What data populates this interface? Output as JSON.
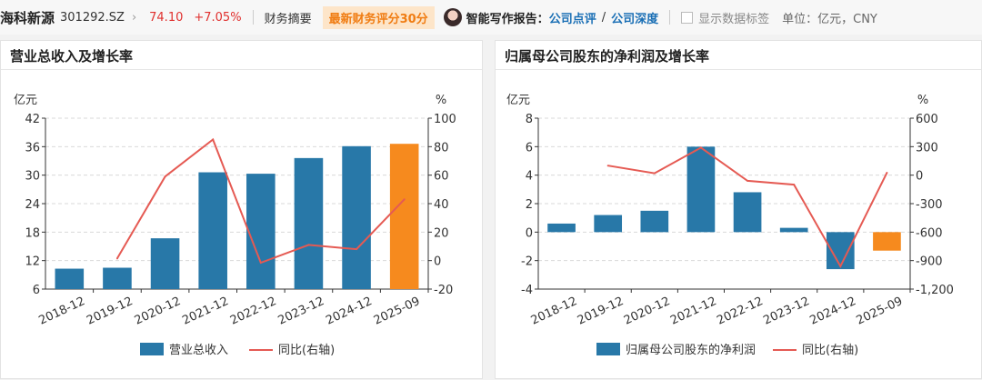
{
  "header": {
    "stock_name": "海科新源",
    "stock_code": "301292.SZ",
    "price": "74.10",
    "change": "+7.05%",
    "tab_finance": "财务摘要",
    "score_badge": "最新财务评分30分",
    "ai_label": "智能写作报告：",
    "link_review": "公司点评",
    "slash": "/",
    "link_depth": "公司深度",
    "show_labels": "显示数据标签",
    "unit": "单位：亿元，CNY"
  },
  "colors": {
    "bar": "#2878a8",
    "bar_highlight": "#f68a1e",
    "line": "#e55a53",
    "accent_red": "#e0302e",
    "link_blue": "#1a6fb5"
  },
  "chart_data": [
    {
      "type": "bar+line",
      "title": "营业总收入及增长率",
      "categories": [
        "2018-12",
        "2019-12",
        "2020-12",
        "2021-12",
        "2022-12",
        "2023-12",
        "2024-12",
        "2025-09"
      ],
      "left_unit": "亿元",
      "right_unit": "%",
      "left_ylim": [
        6,
        42
      ],
      "left_ticks": [
        6,
        12,
        18,
        24,
        30,
        36,
        42
      ],
      "right_ylim": [
        -20,
        100
      ],
      "right_ticks": [
        -20,
        0,
        20,
        40,
        60,
        80,
        100
      ],
      "series": [
        {
          "name": "营业总收入",
          "axis": "left",
          "type": "bar",
          "values": [
            10.3,
            10.5,
            16.7,
            30.6,
            30.3,
            33.6,
            36.1,
            36.6
          ]
        },
        {
          "name": "同比(右轴)",
          "axis": "right",
          "type": "line",
          "values": [
            null,
            1.5,
            59,
            85,
            -1.5,
            11,
            8,
            43
          ]
        }
      ],
      "highlight_index": 7
    },
    {
      "type": "bar+line",
      "title": "归属母公司股东的净利润及增长率",
      "categories": [
        "2018-12",
        "2019-12",
        "2020-12",
        "2021-12",
        "2022-12",
        "2023-12",
        "2024-12",
        "2025-09"
      ],
      "left_unit": "亿元",
      "right_unit": "%",
      "left_ylim": [
        -4,
        8
      ],
      "left_ticks": [
        -4,
        -2,
        0,
        2,
        4,
        6,
        8
      ],
      "left_tick_labels": [
        "-4",
        "-2",
        "0",
        "2",
        "4",
        "6",
        "8"
      ],
      "right_ylim": [
        -1200,
        600
      ],
      "right_ticks": [
        -1200,
        -900,
        -600,
        -300,
        0,
        300,
        600
      ],
      "right_tick_labels": [
        "-1,200",
        "-900",
        "-600",
        "-300",
        "0",
        "300",
        "600"
      ],
      "series": [
        {
          "name": "归属母公司股东的净利润",
          "axis": "left",
          "type": "bar",
          "values": [
            0.6,
            1.2,
            1.5,
            6.0,
            2.8,
            0.3,
            -2.6,
            -1.3
          ]
        },
        {
          "name": "同比(右轴)",
          "axis": "right",
          "type": "line",
          "values": [
            null,
            100,
            20,
            290,
            -60,
            -100,
            -960,
            25
          ]
        }
      ],
      "highlight_index": 7
    }
  ]
}
